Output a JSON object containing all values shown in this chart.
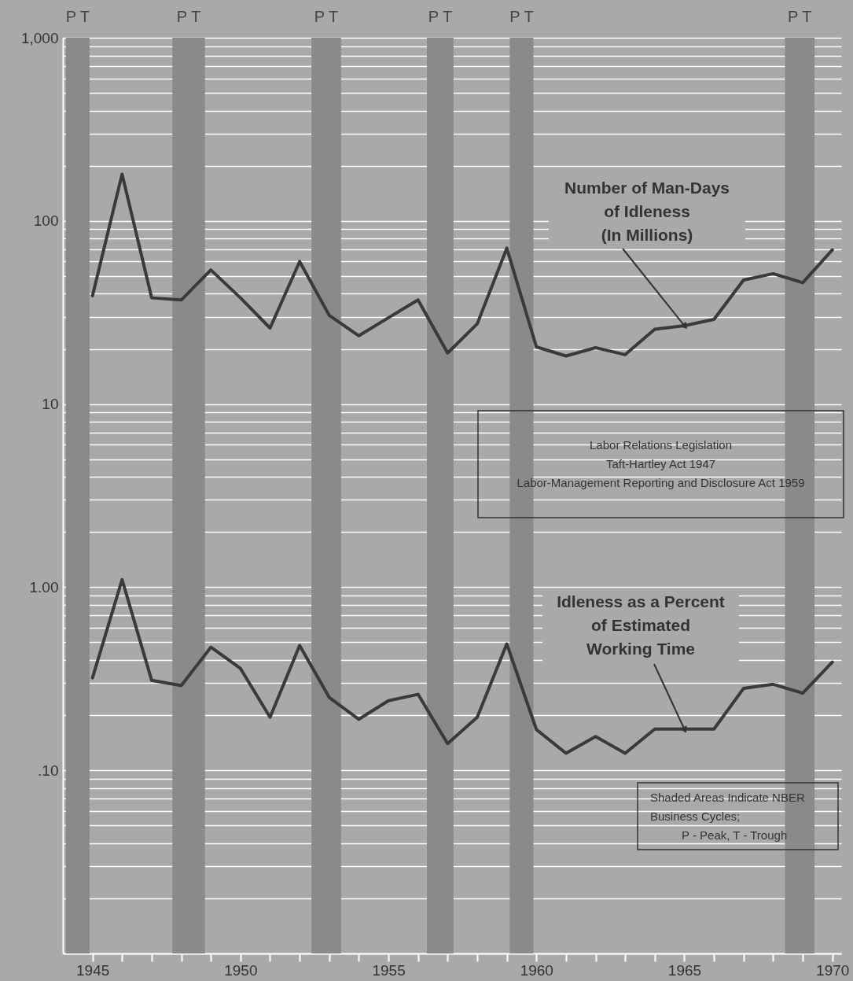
{
  "chart_data": {
    "type": "line",
    "log": "y",
    "grid": "y",
    "x": [
      1945,
      1946,
      1947,
      1948,
      1949,
      1950,
      1951,
      1952,
      1953,
      1954,
      1955,
      1956,
      1957,
      1958,
      1959,
      1960,
      1961,
      1962,
      1963,
      1964,
      1965,
      1966,
      1967,
      1968,
      1969,
      1970
    ],
    "series": [
      {
        "name": "Number of Man-Days\nof Idleness\n(In Millions)",
        "color": "#3a3a3a",
        "values": [
          39,
          180,
          38,
          37,
          54,
          38,
          26,
          60,
          30.5,
          23.6,
          29.6,
          37,
          19,
          27.4,
          71,
          20.5,
          18.3,
          20.3,
          18.6,
          25.6,
          26.8,
          29,
          47.5,
          51.5,
          46,
          69.5
        ]
      },
      {
        "name": "Idleness as a Percent\nof Estimated\nWorking Time",
        "color": "#3a3a3a",
        "values": [
          0.32,
          1.1,
          0.31,
          0.29,
          0.47,
          0.36,
          0.195,
          0.48,
          0.25,
          0.19,
          0.24,
          0.26,
          0.14,
          0.195,
          0.49,
          0.167,
          0.124,
          0.153,
          0.124,
          0.168,
          0.168,
          0.168,
          0.28,
          0.295,
          0.264,
          0.39
        ]
      }
    ],
    "xlim": [
      1944,
      1970.3
    ],
    "xticks": [
      1945,
      {
        "value": 1946,
        "label": null
      },
      {
        "value": 1947,
        "label": null
      },
      {
        "value": 1948,
        "label": null
      },
      {
        "value": 1949,
        "label": null
      },
      1950,
      {
        "value": 1951,
        "label": null
      },
      {
        "value": 1952,
        "label": null
      },
      {
        "value": 1953,
        "label": null
      },
      {
        "value": 1954,
        "label": null
      },
      1955,
      {
        "value": 1956,
        "label": null
      },
      {
        "value": 1957,
        "label": null
      },
      {
        "value": 1958,
        "label": null
      },
      {
        "value": 1959,
        "label": null
      },
      1960,
      {
        "value": 1961,
        "label": null
      },
      {
        "value": 1962,
        "label": null
      },
      {
        "value": 1963,
        "label": null
      },
      {
        "value": 1964,
        "label": null
      },
      1965,
      {
        "value": 1966,
        "label": null
      },
      {
        "value": 1967,
        "label": null
      },
      {
        "value": 1968,
        "label": null
      },
      {
        "value": 1969,
        "label": null
      },
      1970
    ],
    "ylim": [
      0.01,
      1000
    ],
    "yticks": [
      {
        "value": 0.01,
        "label": null
      },
      {
        "value": 0.02,
        "label": null
      },
      {
        "value": 0.03,
        "label": null
      },
      {
        "value": 0.04,
        "label": null
      },
      {
        "value": 0.05,
        "label": null
      },
      {
        "value": 0.06,
        "label": null
      },
      {
        "value": 0.07,
        "label": null
      },
      {
        "value": 0.08,
        "label": null
      },
      {
        "value": 0.09,
        "label": null
      },
      {
        "value": 0.1,
        "label": ".10"
      },
      {
        "value": 0.2,
        "label": null
      },
      {
        "value": 0.3,
        "label": null
      },
      {
        "value": 0.4,
        "label": null
      },
      {
        "value": 0.5,
        "label": null
      },
      {
        "value": 0.6,
        "label": null
      },
      {
        "value": 0.7,
        "label": null
      },
      {
        "value": 0.8,
        "label": null
      },
      {
        "value": 0.9,
        "label": null
      },
      {
        "value": 1,
        "label": "1.00"
      },
      {
        "value": 2,
        "label": null
      },
      {
        "value": 3,
        "label": null
      },
      {
        "value": 4,
        "label": null
      },
      {
        "value": 5,
        "label": null
      },
      {
        "value": 6,
        "label": null
      },
      {
        "value": 7,
        "label": null
      },
      {
        "value": 8,
        "label": null
      },
      {
        "value": 9,
        "label": null
      },
      10,
      {
        "value": 20,
        "label": null
      },
      {
        "value": 30,
        "label": null
      },
      {
        "value": 40,
        "label": null
      },
      {
        "value": 50,
        "label": null
      },
      {
        "value": 60,
        "label": null
      },
      {
        "value": 70,
        "label": null
      },
      {
        "value": 80,
        "label": null
      },
      {
        "value": 90,
        "label": null
      },
      100,
      {
        "value": 200,
        "label": null
      },
      {
        "value": 300,
        "label": null
      },
      {
        "value": 400,
        "label": null
      },
      {
        "value": 500,
        "label": null
      },
      {
        "value": 600,
        "label": null
      },
      {
        "value": 700,
        "label": null
      },
      {
        "value": 800,
        "label": null
      },
      {
        "value": 900,
        "label": null
      },
      {
        "value": 1000,
        "label": "1,000"
      }
    ],
    "bands": [
      {
        "axis": "x",
        "from": 1944.1,
        "to": 1944.9,
        "color": "#8a8a8a",
        "label": "P T"
      },
      {
        "axis": "x",
        "from": 1947.7,
        "to": 1948.8,
        "color": "#8a8a8a",
        "label": "P T"
      },
      {
        "axis": "x",
        "from": 1952.4,
        "to": 1953.4,
        "color": "#8a8a8a",
        "label": "P T"
      },
      {
        "axis": "x",
        "from": 1956.3,
        "to": 1957.2,
        "color": "#8a8a8a",
        "label": "P T"
      },
      {
        "axis": "x",
        "from": 1959.1,
        "to": 1959.9,
        "color": "#8a8a8a",
        "label": "P T"
      },
      {
        "axis": "x",
        "from": 1968.4,
        "to": 1969.4,
        "color": "#8a8a8a",
        "label": "P T"
      }
    ],
    "annotations": [
      "Labor Relations Legislation\nTaft-Hartley Act 1947\nLabor-Management Reporting and Disclosure Act 1959",
      "Shaded Areas Indicate NBER\nBusiness Cycles;\nP - Peak, T - Trough"
    ]
  }
}
